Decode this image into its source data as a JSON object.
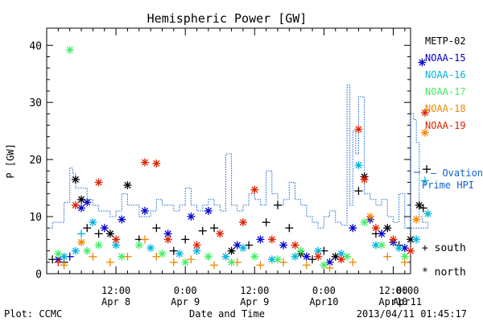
{
  "chart_data": {
    "type": "scatter",
    "title": "Hemispheric Power [GW]",
    "ylabel": "P [GW]",
    "xlabel": "Date and Time",
    "ylim": [
      0,
      43
    ],
    "xlim": [
      0,
      63
    ],
    "grid": false,
    "yticks": [
      0,
      10,
      20,
      30,
      40
    ],
    "xticks": [
      {
        "x": 12,
        "line1": "12:00",
        "line2": "Apr 8"
      },
      {
        "x": 24,
        "line1": "0:00",
        "line2": "Apr 9"
      },
      {
        "x": 36,
        "line1": "12:00",
        "line2": "Apr 9"
      },
      {
        "x": 48,
        "line1": "0:00",
        "line2": "Apr10"
      },
      {
        "x": 60,
        "line1": "12:00",
        "line2": "Apr10"
      },
      {
        "x": 72,
        "line1": "0:00",
        "line2": "Apr11"
      }
    ],
    "legend_placement": "right",
    "series": [
      {
        "name": "METP-02",
        "color": "#000000",
        "points": [
          {
            "x": 1,
            "y": 2.5,
            "m": "+"
          },
          {
            "x": 3,
            "y": 2.0,
            "m": "+"
          },
          {
            "x": 5,
            "y": 16.5,
            "m": "*"
          },
          {
            "x": 6,
            "y": 13,
            "m": "*"
          },
          {
            "x": 7,
            "y": 8,
            "m": "+"
          },
          {
            "x": 9,
            "y": 7,
            "m": "+"
          },
          {
            "x": 11,
            "y": 7,
            "m": "*"
          },
          {
            "x": 14,
            "y": 15.5,
            "m": "*"
          },
          {
            "x": 16,
            "y": 6,
            "m": "+"
          },
          {
            "x": 19,
            "y": 8,
            "m": "+"
          },
          {
            "x": 22,
            "y": 4,
            "m": "+"
          },
          {
            "x": 24,
            "y": 6,
            "m": "+"
          },
          {
            "x": 27,
            "y": 7.5,
            "m": "+"
          },
          {
            "x": 29,
            "y": 8,
            "m": "+"
          },
          {
            "x": 32,
            "y": 4,
            "m": "*"
          },
          {
            "x": 35,
            "y": 5,
            "m": "+"
          },
          {
            "x": 38,
            "y": 9,
            "m": "+"
          },
          {
            "x": 40,
            "y": 12,
            "m": "+"
          },
          {
            "x": 42,
            "y": 8,
            "m": "+"
          },
          {
            "x": 44,
            "y": 3.5,
            "m": "*"
          },
          {
            "x": 46,
            "y": 2.5,
            "m": "+"
          },
          {
            "x": 48,
            "y": 4,
            "m": "+"
          },
          {
            "x": 50,
            "y": 3,
            "m": "*"
          },
          {
            "x": 54,
            "y": 14.5,
            "m": "+"
          },
          {
            "x": 55,
            "y": 17,
            "m": "*"
          },
          {
            "x": 57,
            "y": 7,
            "m": "+"
          },
          {
            "x": 59,
            "y": 8,
            "m": "*"
          },
          {
            "x": 61,
            "y": 5,
            "m": "+"
          },
          {
            "x": 63,
            "y": 6,
            "m": "*"
          },
          {
            "x": 64.5,
            "y": 12,
            "m": "*"
          },
          {
            "x": 65.2,
            "y": 11.5,
            "m": "+"
          },
          {
            "x": 65.8,
            "y": 18.3,
            "m": "+"
          }
        ]
      },
      {
        "name": "NOAA-15",
        "color": "#0000cc",
        "points": [
          {
            "x": 2,
            "y": 2.5,
            "m": "*"
          },
          {
            "x": 4,
            "y": 3,
            "m": "+"
          },
          {
            "x": 6,
            "y": 11.5,
            "m": "*"
          },
          {
            "x": 7,
            "y": 12.5,
            "m": "*"
          },
          {
            "x": 10,
            "y": 8,
            "m": "*"
          },
          {
            "x": 13,
            "y": 9.5,
            "m": "*"
          },
          {
            "x": 17,
            "y": 11,
            "m": "*"
          },
          {
            "x": 21,
            "y": 7,
            "m": "*"
          },
          {
            "x": 25,
            "y": 10,
            "m": "*"
          },
          {
            "x": 28,
            "y": 11,
            "m": "*"
          },
          {
            "x": 33,
            "y": 5,
            "m": "*"
          },
          {
            "x": 37,
            "y": 6,
            "m": "*"
          },
          {
            "x": 41,
            "y": 5,
            "m": "*"
          },
          {
            "x": 45,
            "y": 3,
            "m": "*"
          },
          {
            "x": 49,
            "y": 2,
            "m": "*"
          },
          {
            "x": 53,
            "y": 8,
            "m": "*"
          },
          {
            "x": 56,
            "y": 9.5,
            "m": "*"
          },
          {
            "x": 58,
            "y": 7,
            "m": "*"
          },
          {
            "x": 60,
            "y": 5.5,
            "m": "*"
          },
          {
            "x": 62,
            "y": 4.5,
            "m": "*"
          },
          {
            "x": 65,
            "y": 37,
            "m": "*"
          }
        ]
      },
      {
        "name": "NOAA-16",
        "color": "#00b4e0",
        "points": [
          {
            "x": 3,
            "y": 3,
            "m": "*"
          },
          {
            "x": 5,
            "y": 4,
            "m": "*"
          },
          {
            "x": 6,
            "y": 7,
            "m": "+"
          },
          {
            "x": 8,
            "y": 9,
            "m": "*"
          },
          {
            "x": 12,
            "y": 5,
            "m": "*"
          },
          {
            "x": 18,
            "y": 4.5,
            "m": "*"
          },
          {
            "x": 23,
            "y": 3.5,
            "m": "*"
          },
          {
            "x": 26,
            "y": 4,
            "m": "*"
          },
          {
            "x": 31,
            "y": 3,
            "m": "*"
          },
          {
            "x": 34,
            "y": 4.5,
            "m": "*"
          },
          {
            "x": 39,
            "y": 2.5,
            "m": "*"
          },
          {
            "x": 43,
            "y": 3,
            "m": "*"
          },
          {
            "x": 47,
            "y": 4,
            "m": "*"
          },
          {
            "x": 51,
            "y": 3.5,
            "m": "*"
          },
          {
            "x": 54,
            "y": 19,
            "m": "*"
          },
          {
            "x": 57,
            "y": 5,
            "m": "*"
          },
          {
            "x": 61,
            "y": 4.5,
            "m": "*"
          },
          {
            "x": 64,
            "y": 6,
            "m": "*"
          },
          {
            "x": 65.5,
            "y": 16.3,
            "m": "+"
          },
          {
            "x": 66,
            "y": 10.5,
            "m": "*"
          }
        ]
      },
      {
        "name": "NOAA-17",
        "color": "#44ee66",
        "points": [
          {
            "x": 4,
            "y": 39.2,
            "m": "*"
          },
          {
            "x": 2,
            "y": 3.5,
            "m": "*"
          },
          {
            "x": 7,
            "y": 4,
            "m": "*"
          },
          {
            "x": 9,
            "y": 5,
            "m": "*"
          },
          {
            "x": 13,
            "y": 3,
            "m": "*"
          },
          {
            "x": 16,
            "y": 5,
            "m": "*"
          },
          {
            "x": 20,
            "y": 3.5,
            "m": "*"
          },
          {
            "x": 24,
            "y": 2,
            "m": "*"
          },
          {
            "x": 28,
            "y": 3,
            "m": "*"
          },
          {
            "x": 32,
            "y": 2,
            "m": "*"
          },
          {
            "x": 36,
            "y": 3,
            "m": "*"
          },
          {
            "x": 40,
            "y": 2.5,
            "m": "*"
          },
          {
            "x": 44,
            "y": 4,
            "m": "*"
          },
          {
            "x": 48,
            "y": 1.5,
            "m": "*"
          },
          {
            "x": 52,
            "y": 3,
            "m": "*"
          },
          {
            "x": 55,
            "y": 9,
            "m": "*"
          },
          {
            "x": 58,
            "y": 5,
            "m": "*"
          },
          {
            "x": 62,
            "y": 3,
            "m": "*"
          }
        ]
      },
      {
        "name": "NOAA-18",
        "color": "#ee8800",
        "points": [
          {
            "x": 3,
            "y": 1.5,
            "m": "+"
          },
          {
            "x": 6,
            "y": 5.5,
            "m": "*"
          },
          {
            "x": 8,
            "y": 3,
            "m": "+"
          },
          {
            "x": 11,
            "y": 2,
            "m": "+"
          },
          {
            "x": 14,
            "y": 3,
            "m": "+"
          },
          {
            "x": 17,
            "y": 6,
            "m": "+"
          },
          {
            "x": 19,
            "y": 3,
            "m": "+"
          },
          {
            "x": 22,
            "y": 2,
            "m": "+"
          },
          {
            "x": 25,
            "y": 2.5,
            "m": "+"
          },
          {
            "x": 29,
            "y": 1.5,
            "m": "+"
          },
          {
            "x": 33,
            "y": 2,
            "m": "+"
          },
          {
            "x": 37,
            "y": 1.5,
            "m": "+"
          },
          {
            "x": 41,
            "y": 2,
            "m": "+"
          },
          {
            "x": 45,
            "y": 1.5,
            "m": "+"
          },
          {
            "x": 49,
            "y": 1,
            "m": "+"
          },
          {
            "x": 53,
            "y": 2,
            "m": "+"
          },
          {
            "x": 56,
            "y": 10,
            "m": "*"
          },
          {
            "x": 59,
            "y": 3,
            "m": "+"
          },
          {
            "x": 62,
            "y": 2,
            "m": "+"
          },
          {
            "x": 64,
            "y": 9.5,
            "m": "*"
          },
          {
            "x": 65.5,
            "y": 24.7,
            "m": "*"
          }
        ]
      },
      {
        "name": "NOAA-19",
        "color": "#dd2200",
        "points": [
          {
            "x": 2,
            "y": 2,
            "m": "+"
          },
          {
            "x": 5,
            "y": 12,
            "m": "*"
          },
          {
            "x": 9,
            "y": 16,
            "m": "*"
          },
          {
            "x": 12,
            "y": 6,
            "m": "*"
          },
          {
            "x": 17,
            "y": 19.5,
            "m": "*"
          },
          {
            "x": 19,
            "y": 19.3,
            "m": "*"
          },
          {
            "x": 21,
            "y": 6,
            "m": "*"
          },
          {
            "x": 26,
            "y": 5,
            "m": "*"
          },
          {
            "x": 30,
            "y": 7,
            "m": "*"
          },
          {
            "x": 34,
            "y": 9,
            "m": "*"
          },
          {
            "x": 36,
            "y": 14.7,
            "m": "*"
          },
          {
            "x": 39,
            "y": 6,
            "m": "*"
          },
          {
            "x": 43,
            "y": 5,
            "m": "*"
          },
          {
            "x": 47,
            "y": 3,
            "m": "*"
          },
          {
            "x": 51,
            "y": 2.5,
            "m": "*"
          },
          {
            "x": 54,
            "y": 25.3,
            "m": "*"
          },
          {
            "x": 55,
            "y": 16.5,
            "m": "*"
          },
          {
            "x": 57,
            "y": 8,
            "m": "*"
          },
          {
            "x": 60,
            "y": 6,
            "m": "*"
          },
          {
            "x": 63,
            "y": 4,
            "m": "*"
          },
          {
            "x": 65.5,
            "y": 28.2,
            "m": "*"
          }
        ]
      }
    ],
    "ovation": {
      "name": "Ovation Prime HPI",
      "color": "#1060d0",
      "steps": [
        [
          0,
          8
        ],
        [
          1,
          9
        ],
        [
          3,
          12.5
        ],
        [
          4,
          18.5
        ],
        [
          4.5,
          17.5
        ],
        [
          5,
          15
        ],
        [
          7,
          13
        ],
        [
          8,
          12
        ],
        [
          9,
          11
        ],
        [
          11,
          10
        ],
        [
          12,
          11
        ],
        [
          13,
          14
        ],
        [
          14,
          12
        ],
        [
          16,
          10
        ],
        [
          18,
          11
        ],
        [
          19,
          13
        ],
        [
          20,
          12
        ],
        [
          22,
          11
        ],
        [
          23,
          12
        ],
        [
          24,
          15
        ],
        [
          25,
          12
        ],
        [
          26,
          11
        ],
        [
          27,
          12
        ],
        [
          28,
          13
        ],
        [
          29,
          12
        ],
        [
          30,
          11
        ],
        [
          31,
          21
        ],
        [
          32,
          12
        ],
        [
          33,
          11
        ],
        [
          34,
          12
        ],
        [
          35,
          14
        ],
        [
          36,
          13
        ],
        [
          37,
          12
        ],
        [
          38,
          18
        ],
        [
          39,
          14
        ],
        [
          40,
          12
        ],
        [
          41,
          13
        ],
        [
          42,
          16
        ],
        [
          43,
          13
        ],
        [
          44,
          12
        ],
        [
          45,
          10
        ],
        [
          46,
          9
        ],
        [
          47,
          8
        ],
        [
          48,
          10
        ],
        [
          49,
          11
        ],
        [
          50,
          9
        ],
        [
          51,
          8.5
        ],
        [
          52,
          33
        ],
        [
          52.5,
          12
        ],
        [
          53,
          25
        ],
        [
          53.5,
          21
        ],
        [
          54,
          31
        ],
        [
          55,
          14
        ],
        [
          56,
          13
        ],
        [
          57,
          12
        ],
        [
          58,
          13
        ],
        [
          59,
          10
        ],
        [
          60,
          9
        ],
        [
          61,
          14
        ],
        [
          62,
          8
        ],
        [
          63,
          28
        ],
        [
          63.5,
          27
        ],
        [
          64,
          23
        ],
        [
          64.5,
          10
        ],
        [
          65,
          9
        ],
        [
          66,
          8
        ]
      ]
    },
    "legend_symbols": [
      {
        "symbol": "+",
        "label": "south"
      },
      {
        "symbol": "*",
        "label": "north"
      }
    ],
    "footer_left": "Plot: CCMC",
    "footer_right": "2013/04/11 01:45:17"
  }
}
